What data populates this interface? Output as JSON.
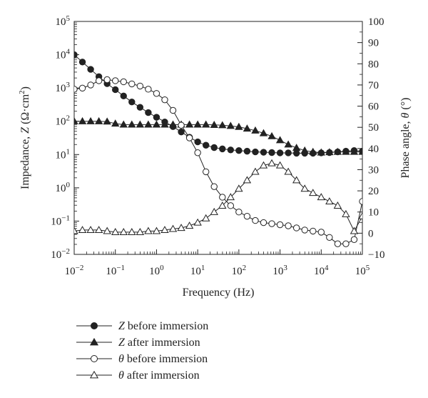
{
  "chart_data": {
    "type": "scatter",
    "xlabel": "Frequency (Hz)",
    "ylabel_left": {
      "main": "Impedance, ",
      "var": "Z",
      "unit_open": " (Ω·cm",
      "unit_exp": "2",
      "unit_close": ")"
    },
    "ylabel_right": {
      "main": "Phase angle, ",
      "var": "θ",
      "unit": " (°)"
    },
    "x_scale": "log",
    "xlim": [
      0.01,
      100000
    ],
    "x_ticks": [
      {
        "base": "10",
        "exp": "−2"
      },
      {
        "base": "10",
        "exp": "−1"
      },
      {
        "base": "10",
        "exp": "0"
      },
      {
        "base": "10",
        "exp": "1"
      },
      {
        "base": "10",
        "exp": "2"
      },
      {
        "base": "10",
        "exp": "3"
      },
      {
        "base": "10",
        "exp": "4"
      },
      {
        "base": "10",
        "exp": "5"
      }
    ],
    "y_left_scale": "log",
    "y_left_lim": [
      0.01,
      100000
    ],
    "y_left_ticks": [
      {
        "base": "10",
        "exp": "−2"
      },
      {
        "base": "10",
        "exp": "−1"
      },
      {
        "base": "10",
        "exp": "0"
      },
      {
        "base": "10",
        "exp": "1"
      },
      {
        "base": "10",
        "exp": "2"
      },
      {
        "base": "10",
        "exp": "3"
      },
      {
        "base": "10",
        "exp": "4"
      },
      {
        "base": "10",
        "exp": "5"
      }
    ],
    "y_right_lim": [
      -10,
      100
    ],
    "y_right_ticks": [
      "−10",
      "0",
      "10",
      "20",
      "30",
      "40",
      "50",
      "60",
      "70",
      "80",
      "90",
      "100"
    ],
    "grid": false,
    "legend_position": "bottom-left, below plot",
    "series": [
      {
        "name_var": "Z",
        "name_rest": " before immersion",
        "axis": "left",
        "marker": "filled-circle",
        "line": true,
        "x_log": [
          -2.0,
          -1.8,
          -1.6,
          -1.4,
          -1.2,
          -1.0,
          -0.8,
          -0.6,
          -0.4,
          -0.2,
          0.0,
          0.2,
          0.4,
          0.6,
          0.8,
          1.0,
          1.2,
          1.4,
          1.6,
          1.8,
          2.0,
          2.2,
          2.4,
          2.6,
          2.8,
          3.0,
          3.2,
          3.4,
          3.6,
          3.8,
          4.0,
          4.2,
          4.4,
          4.6,
          4.8,
          5.0
        ],
        "y_log": [
          4.0,
          3.78,
          3.56,
          3.34,
          3.13,
          2.95,
          2.76,
          2.58,
          2.42,
          2.26,
          2.12,
          1.98,
          1.84,
          1.68,
          1.52,
          1.38,
          1.28,
          1.21,
          1.17,
          1.14,
          1.12,
          1.1,
          1.08,
          1.07,
          1.06,
          1.05,
          1.05,
          1.04,
          1.04,
          1.04,
          1.05,
          1.06,
          1.08,
          1.1,
          1.12,
          1.1
        ]
      },
      {
        "name_var": "Z",
        "name_rest": " after immersion",
        "axis": "left",
        "marker": "filled-triangle",
        "line": true,
        "x_log": [
          -2.0,
          -1.8,
          -1.6,
          -1.4,
          -1.2,
          -1.0,
          -0.8,
          -0.6,
          -0.4,
          -0.2,
          0.0,
          0.2,
          0.4,
          0.6,
          0.8,
          1.0,
          1.2,
          1.4,
          1.6,
          1.8,
          2.0,
          2.2,
          2.4,
          2.6,
          2.8,
          3.0,
          3.2,
          3.4,
          3.6,
          3.8,
          4.0,
          4.2,
          4.4,
          4.6,
          4.8,
          5.0
        ],
        "y_log": [
          2.0,
          2.0,
          2.0,
          2.0,
          1.99,
          1.93,
          1.9,
          1.9,
          1.9,
          1.9,
          1.9,
          1.9,
          1.9,
          1.9,
          1.9,
          1.9,
          1.9,
          1.89,
          1.88,
          1.86,
          1.83,
          1.78,
          1.72,
          1.64,
          1.55,
          1.43,
          1.3,
          1.2,
          1.12,
          1.08,
          1.06,
          1.07,
          1.08,
          1.08,
          1.08,
          1.08
        ]
      },
      {
        "name_var": "θ",
        "name_rest": " before immersion",
        "axis": "right",
        "marker": "open-circle",
        "line": true,
        "x_log": [
          -2.0,
          -1.8,
          -1.6,
          -1.4,
          -1.2,
          -1.0,
          -0.8,
          -0.6,
          -0.4,
          -0.2,
          0.0,
          0.2,
          0.4,
          0.6,
          0.8,
          1.0,
          1.2,
          1.4,
          1.6,
          1.8,
          2.0,
          2.2,
          2.4,
          2.6,
          2.8,
          3.0,
          3.2,
          3.4,
          3.6,
          3.8,
          4.0,
          4.2,
          4.4,
          4.6,
          4.8,
          5.0
        ],
        "y": [
          68,
          68.5,
          70,
          72,
          72.5,
          72,
          71.5,
          70.5,
          69.5,
          68,
          66,
          63,
          58,
          51,
          45,
          38,
          29,
          22,
          17,
          13,
          10,
          8,
          6,
          5,
          4.5,
          4,
          3.5,
          2.5,
          1.5,
          1,
          0.5,
          -2,
          -5,
          -5,
          -3,
          15
        ]
      },
      {
        "name_var": "θ",
        "name_rest": " after immersion",
        "axis": "right",
        "marker": "open-triangle",
        "line": true,
        "x_log": [
          -2.0,
          -1.8,
          -1.6,
          -1.4,
          -1.2,
          -1.0,
          -0.8,
          -0.6,
          -0.4,
          -0.2,
          0.0,
          0.2,
          0.4,
          0.6,
          0.8,
          1.0,
          1.2,
          1.4,
          1.6,
          1.8,
          2.0,
          2.2,
          2.4,
          2.6,
          2.8,
          3.0,
          3.2,
          3.4,
          3.6,
          3.8,
          4.0,
          4.2,
          4.4,
          4.6,
          4.8,
          5.0
        ],
        "y": [
          1,
          1.5,
          1.5,
          1.5,
          1,
          0.5,
          0.5,
          0.5,
          0.5,
          1,
          1,
          1.5,
          2,
          2.5,
          3.5,
          5,
          7,
          10,
          13,
          17,
          21,
          25,
          29,
          32,
          33,
          32,
          29,
          25,
          21,
          19,
          17,
          15,
          13,
          9,
          1,
          8
        ]
      }
    ]
  }
}
